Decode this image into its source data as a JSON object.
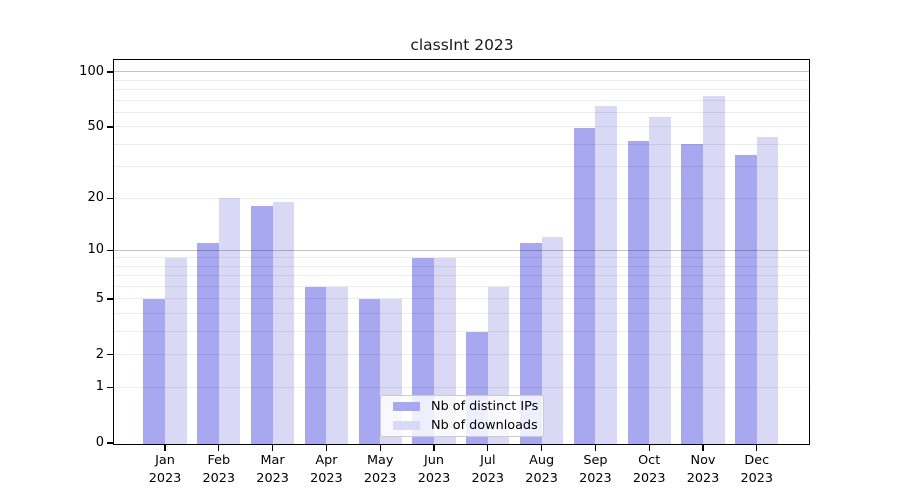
{
  "chart_data": {
    "type": "bar",
    "title": "classInt 2023",
    "categories": [
      "Jan 2023",
      "Feb 2023",
      "Mar 2023",
      "Apr 2023",
      "May 2023",
      "Jun 2023",
      "Jul 2023",
      "Aug 2023",
      "Sep 2023",
      "Oct 2023",
      "Nov 2023",
      "Dec 2023"
    ],
    "series": [
      {
        "name": "Nb of distinct IPs",
        "color": "#a8a8f0",
        "values": [
          5,
          11,
          18,
          6,
          5,
          9,
          3,
          11,
          49,
          42,
          40,
          35
        ]
      },
      {
        "name": "Nb of downloads",
        "color": "#d9d9f6",
        "values": [
          9,
          20,
          19,
          6,
          5,
          9,
          6,
          12,
          65,
          57,
          74,
          44
        ]
      }
    ],
    "xlabel": "",
    "ylabel": "",
    "y_scale": "log1p",
    "y_ticks": [
      0,
      1,
      2,
      5,
      10,
      20,
      50,
      100
    ],
    "ylim": [
      0,
      116
    ],
    "grid": "horizontal",
    "gridline_values": [
      1,
      2,
      3,
      4,
      5,
      6,
      7,
      8,
      9,
      10,
      20,
      30,
      40,
      50,
      60,
      70,
      80,
      90,
      100
    ],
    "emphasized_gridlines": [
      10,
      100
    ],
    "grid_color": "rgba(0,0,0,0.08)",
    "grid_emphasis_color": "rgba(0,0,0,0.24)",
    "axis_color": "#000000",
    "legend_position": "bottom-center"
  }
}
